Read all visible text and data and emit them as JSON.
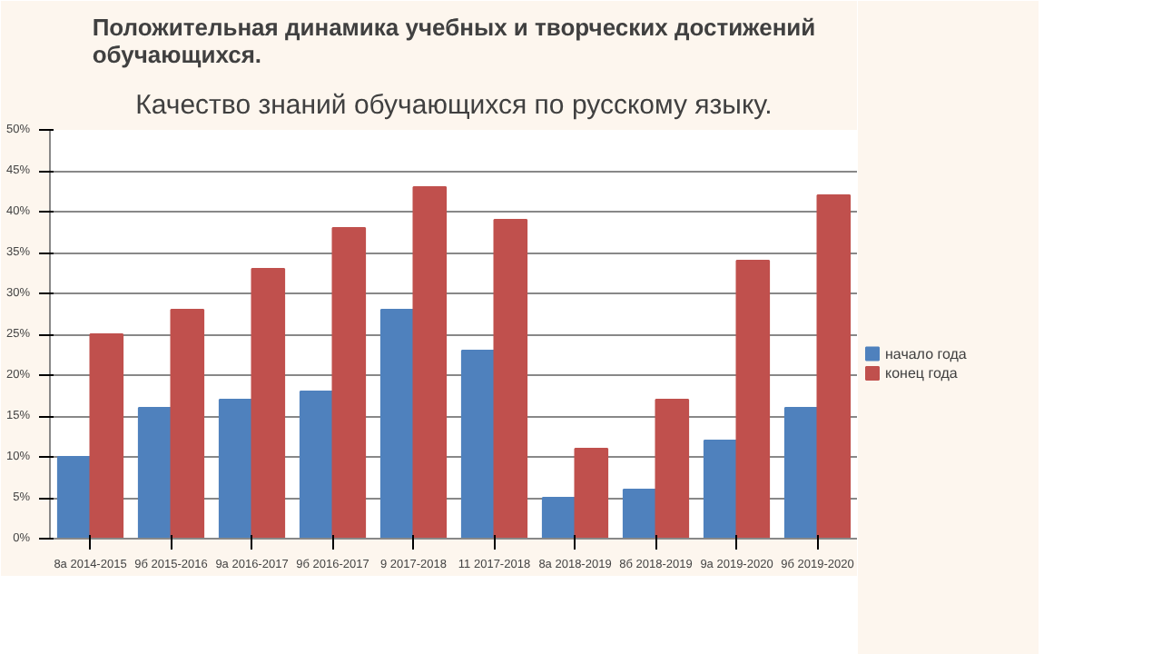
{
  "chart_data": {
    "type": "bar",
    "title": "Положительная динамика учебных и творческих достижений обучающихся.",
    "subtitle": "Качество знаний обучающихся по русскому языку.",
    "categories": [
      "8а 2014-2015",
      "9б 2015-2016",
      "9а 2016-2017",
      "9б 2016-2017",
      "9 2017-2018",
      "11 2017-2018",
      "8а 2018-2019",
      "8б 2018-2019",
      "9а 2019-2020",
      "9б 2019-2020"
    ],
    "series": [
      {
        "name": "начало года",
        "color": "#4f81bd",
        "values": [
          10,
          16,
          17,
          18,
          28,
          23,
          5,
          6,
          12,
          16
        ]
      },
      {
        "name": "конец года",
        "color": "#c0504d",
        "values": [
          25,
          28,
          33,
          38,
          43,
          39,
          11,
          17,
          34,
          42
        ]
      }
    ],
    "ylim": [
      0,
      50
    ],
    "yticks": [
      {
        "value": 0,
        "label": "0%"
      },
      {
        "value": 5,
        "label": "5%"
      },
      {
        "value": 10,
        "label": "10%"
      },
      {
        "value": 15,
        "label": "15%"
      },
      {
        "value": 20,
        "label": "20%"
      },
      {
        "value": 25,
        "label": "25%"
      },
      {
        "value": 30,
        "label": "30%"
      },
      {
        "value": 35,
        "label": "35%"
      },
      {
        "value": 40,
        "label": "40%"
      },
      {
        "value": 45,
        "label": "45%"
      },
      {
        "value": 50,
        "label": "50%"
      }
    ],
    "grid": "y",
    "legend": "right"
  }
}
